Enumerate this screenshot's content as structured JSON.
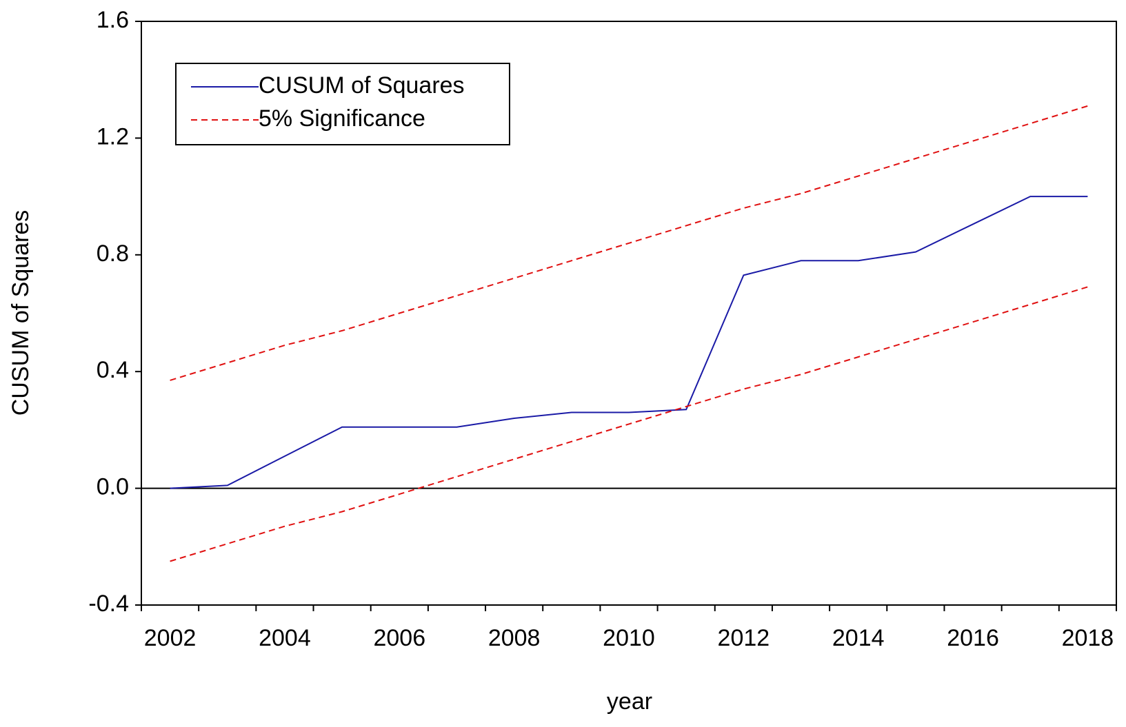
{
  "chart_data": {
    "type": "line",
    "x_label": "year",
    "y_label": "CUSUM of Squares",
    "categories": [
      "2002",
      null,
      "2004",
      null,
      "2006",
      null,
      "2008",
      null,
      "2010",
      null,
      "2012",
      null,
      "2014",
      null,
      "2016",
      null,
      "2018"
    ],
    "series": [
      {
        "name": "CUSUM of Squares",
        "color": "#1a1aa6",
        "dashed": false,
        "values": [
          0.0,
          0.01,
          0.11,
          0.21,
          0.21,
          0.21,
          0.24,
          0.26,
          0.26,
          0.27,
          0.73,
          0.78,
          0.78,
          0.81,
          0.905,
          1.0,
          1.0
        ]
      },
      {
        "name": "5% Significance",
        "color": "#e01010",
        "dashed": true,
        "values": [
          0.37,
          0.43,
          0.49,
          0.54,
          0.6,
          0.66,
          0.72,
          0.78,
          0.84,
          0.9,
          0.96,
          1.01,
          1.07,
          1.13,
          1.19,
          1.25,
          1.31
        ],
        "lower": [
          -0.25,
          -0.19,
          -0.13,
          -0.08,
          -0.02,
          0.04,
          0.1,
          0.16,
          0.22,
          0.28,
          0.34,
          0.39,
          0.45,
          0.51,
          0.57,
          0.63,
          0.69
        ]
      }
    ],
    "ylim": [
      -0.4,
      1.6
    ],
    "yticks": [
      -0.4,
      {
        "value": 0,
        "label": "0.0"
      },
      0.4,
      0.8,
      1.2,
      1.6
    ],
    "zero_line": true,
    "grid": false,
    "legend": "upper left"
  }
}
